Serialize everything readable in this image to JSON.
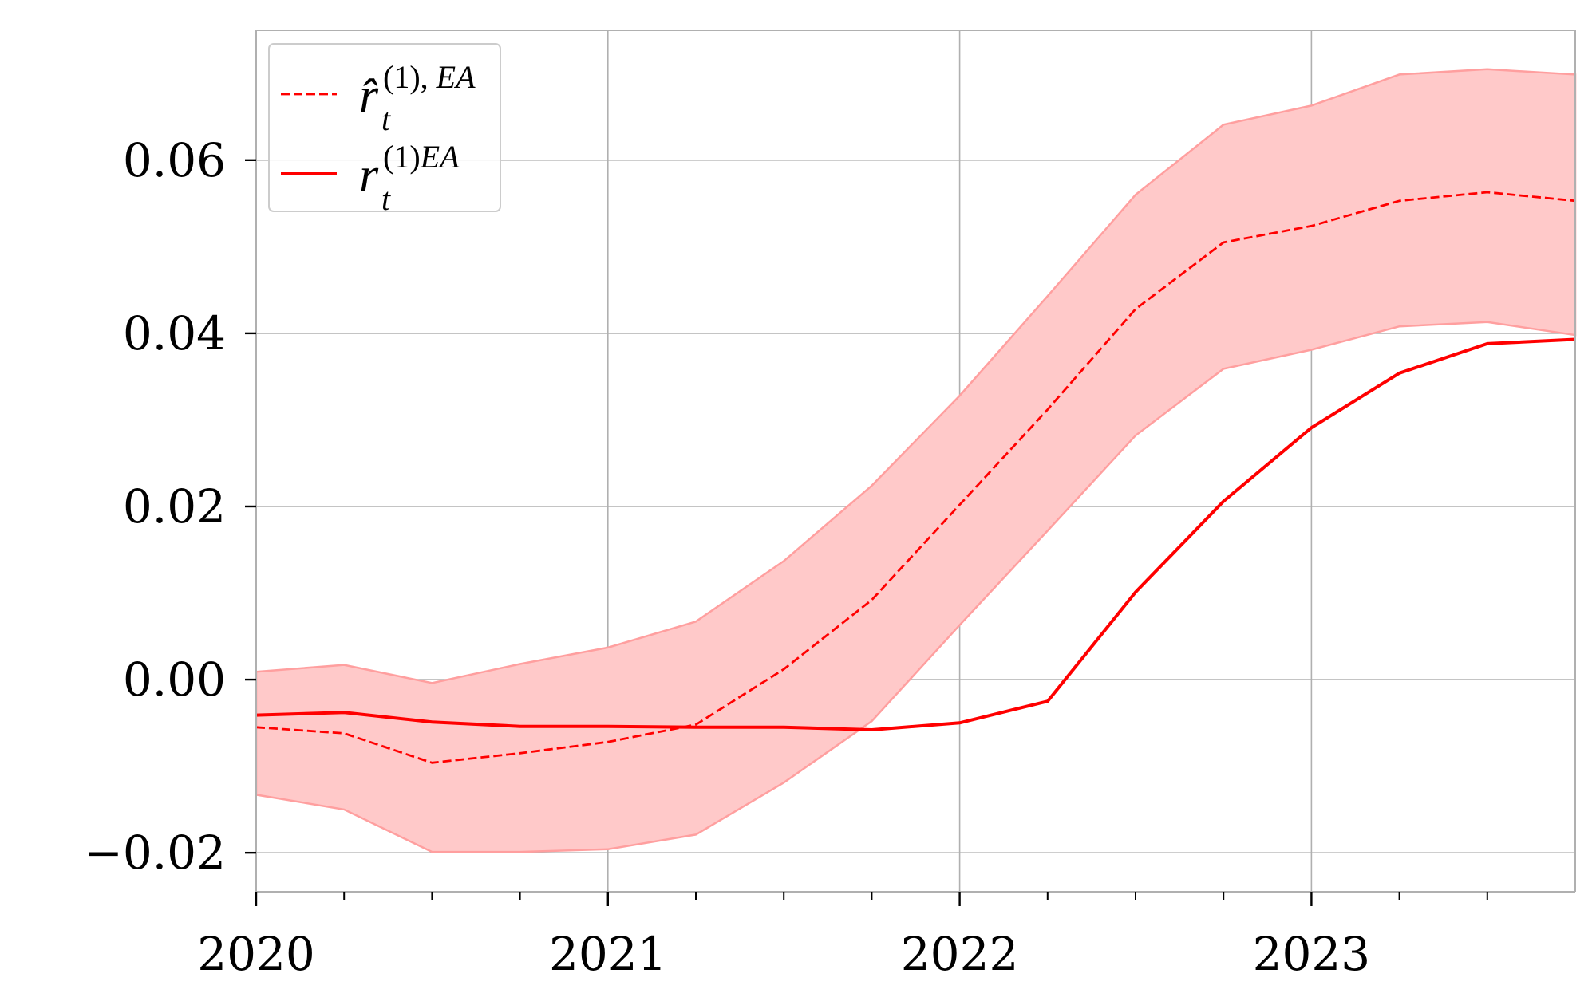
{
  "chart_data": {
    "type": "line",
    "title": "",
    "xlabel": "",
    "ylabel": "",
    "xlim": [
      2020.0,
      2023.75
    ],
    "ylim": [
      -0.0245,
      0.075
    ],
    "x_ticks": [
      2020,
      2021,
      2022,
      2023
    ],
    "x_tick_labels": [
      "2020",
      "2021",
      "2022",
      "2023"
    ],
    "x_minor_ticks": [
      2020.25,
      2020.5,
      2020.75,
      2021.25,
      2021.5,
      2021.75,
      2022.25,
      2022.5,
      2022.75,
      2023.25,
      2023.5
    ],
    "y_ticks": [
      -0.02,
      0.0,
      0.02,
      0.04,
      0.06
    ],
    "y_tick_labels": [
      "−0.02",
      "0.00",
      "0.02",
      "0.04",
      "0.06"
    ],
    "grid": true,
    "legend_position": "top-left",
    "x": [
      2020.0,
      2020.25,
      2020.5,
      2020.75,
      2021.0,
      2021.25,
      2021.5,
      2021.75,
      2022.0,
      2022.25,
      2022.5,
      2022.75,
      2023.0,
      2023.25,
      2023.5,
      2023.75
    ],
    "series": [
      {
        "name": "r̂_t^{(1),EA}",
        "legend_main": "r̂",
        "legend_sub": "t",
        "legend_sup": "(1), EA",
        "style": "dashed",
        "color": "#ff0000",
        "values": [
          -0.0055,
          -0.0062,
          -0.0096,
          -0.0085,
          -0.0072,
          -0.0052,
          0.0012,
          0.0092,
          0.0202,
          0.0312,
          0.0428,
          0.0505,
          0.0524,
          0.0553,
          0.0563,
          0.0553
        ],
        "band_lower": [
          -0.0133,
          -0.015,
          -0.0199,
          -0.0199,
          -0.0196,
          -0.0179,
          -0.0119,
          -0.0048,
          0.0063,
          0.0172,
          0.0282,
          0.0359,
          0.0381,
          0.0408,
          0.0413,
          0.0398
        ],
        "band_upper": [
          0.0009,
          0.0017,
          -0.0004,
          0.0018,
          0.0037,
          0.0067,
          0.0137,
          0.0224,
          0.0328,
          0.0443,
          0.056,
          0.0641,
          0.0663,
          0.0699,
          0.0705,
          0.0699
        ]
      },
      {
        "name": "r_t^{(1)EA}",
        "legend_main": "r",
        "legend_sub": "t",
        "legend_sup": "(1)EA",
        "style": "solid",
        "color": "#ff0000",
        "values": [
          -0.0041,
          -0.0038,
          -0.0049,
          -0.0054,
          -0.0054,
          -0.0055,
          -0.0055,
          -0.0058,
          -0.005,
          -0.0025,
          0.0101,
          0.0206,
          0.0291,
          0.0354,
          0.0388,
          0.0393
        ]
      }
    ],
    "band_color": "#ffc9c9",
    "band_edge_color": "#ff9f9f"
  }
}
